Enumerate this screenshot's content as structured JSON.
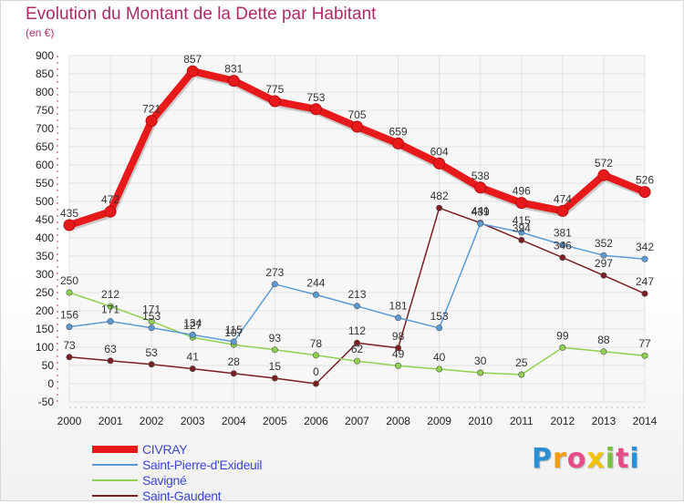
{
  "title": "Evolution du Montant de la Dette par Habitant",
  "subtitle": "(en €)",
  "logo": {
    "letters": [
      "P",
      "r",
      "o",
      "x",
      "i",
      "t",
      "i"
    ],
    "colors": [
      "#2b8fd6",
      "#f39c12",
      "#e84d8a",
      "#f2c100",
      "#7ac142",
      "#e84d8a",
      "#2b8fd6"
    ]
  },
  "chart_data": {
    "type": "line",
    "x": [
      "2000",
      "2001",
      "2002",
      "2003",
      "2004",
      "2005",
      "2006",
      "2007",
      "2008",
      "2009",
      "2010",
      "2011",
      "2012",
      "2013",
      "2014"
    ],
    "y_ticks": [
      -50,
      0,
      50,
      100,
      150,
      200,
      250,
      300,
      350,
      400,
      450,
      500,
      550,
      600,
      650,
      700,
      750,
      800,
      850,
      900
    ],
    "ylim": [
      -50,
      900
    ],
    "grid": true,
    "legend_position": "bottom-left",
    "series": [
      {
        "name": "CIVRAY",
        "color": "#e8191a",
        "values": [
          435,
          472,
          721,
          857,
          831,
          775,
          753,
          705,
          659,
          604,
          538,
          496,
          474,
          572,
          526
        ],
        "labels": [
          "435",
          "472",
          "721",
          "857",
          "831",
          "775",
          "753",
          "705",
          "659",
          "604",
          "538",
          "496",
          "474",
          "572",
          "526"
        ]
      },
      {
        "name": "Saint-Pierre-d'Exideuil",
        "color": "#5b9bd5",
        "values": [
          156,
          171,
          153,
          134,
          115,
          273,
          244,
          213,
          181,
          153,
          439,
          415,
          381,
          352,
          342
        ],
        "labels": [
          "156",
          "171",
          "153",
          "134",
          "115",
          "273",
          "244",
          "213",
          "181",
          "153",
          "439",
          "415",
          "381",
          "352",
          "342"
        ]
      },
      {
        "name": "Savigné",
        "color": "#8fd14f",
        "values": [
          250,
          212,
          171,
          127,
          107,
          93,
          78,
          62,
          49,
          40,
          30,
          25,
          99,
          88,
          77
        ],
        "labels": [
          "250",
          "212",
          "171",
          "127",
          "107",
          "93",
          "78",
          "62",
          "49",
          "40",
          "30",
          "25",
          "99",
          "88",
          "77"
        ]
      },
      {
        "name": "Saint-Gaudent",
        "color": "#7a1e22",
        "values": [
          73,
          63,
          53,
          41,
          28,
          15,
          0,
          112,
          98,
          482,
          441,
          394,
          346,
          297,
          247
        ],
        "labels": [
          "73",
          "63",
          "53",
          "41",
          "28",
          "15",
          "0",
          "112",
          "98",
          "482",
          "441",
          "394",
          "346",
          "297",
          "247"
        ]
      }
    ]
  }
}
